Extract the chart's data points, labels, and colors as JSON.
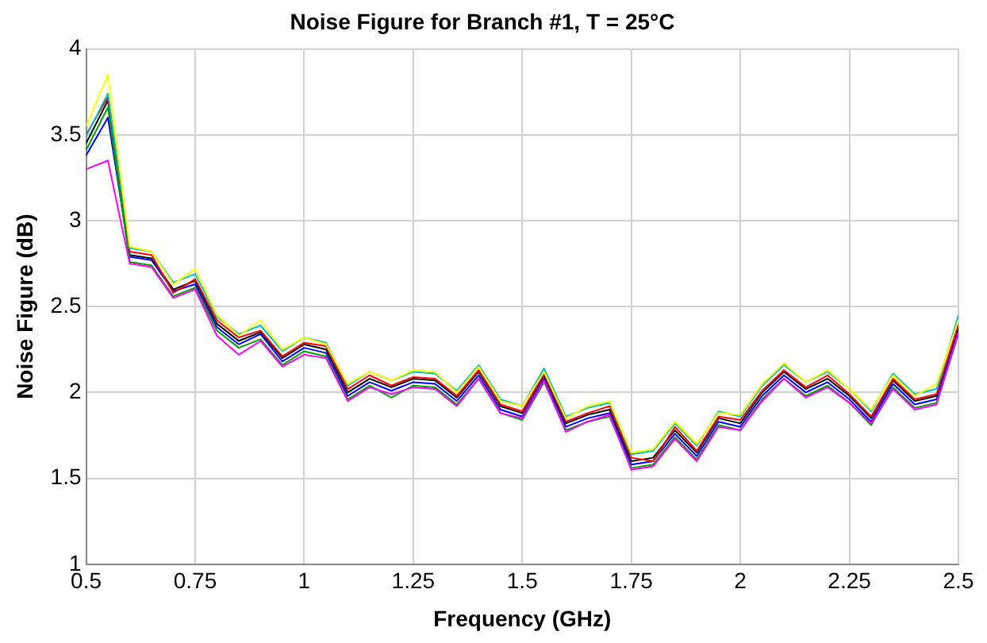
{
  "chart_data": {
    "type": "line",
    "title": "Noise Figure for Branch #1, T = 25°C",
    "xlabel": "Frequency (GHz)",
    "ylabel": "Noise Figure (dB)",
    "x": [
      0.5,
      0.55,
      0.6,
      0.65,
      0.7,
      0.75,
      0.8,
      0.85,
      0.9,
      0.95,
      1.0,
      1.05,
      1.1,
      1.15,
      1.2,
      1.25,
      1.3,
      1.35,
      1.4,
      1.45,
      1.5,
      1.55,
      1.6,
      1.65,
      1.7,
      1.75,
      1.8,
      1.85,
      1.9,
      1.95,
      2.0,
      2.05,
      2.1,
      2.15,
      2.2,
      2.25,
      2.3,
      2.35,
      2.4,
      2.45,
      2.5
    ],
    "series": [
      {
        "color": "#ffff00",
        "values": [
          3.55,
          3.85,
          2.85,
          2.82,
          2.63,
          2.72,
          2.45,
          2.33,
          2.42,
          2.25,
          2.32,
          2.28,
          2.05,
          2.12,
          2.07,
          2.13,
          2.12,
          2.0,
          2.15,
          1.95,
          1.92,
          2.12,
          1.85,
          1.92,
          1.95,
          1.65,
          1.67,
          1.83,
          1.7,
          1.88,
          1.87,
          2.05,
          2.17,
          2.06,
          2.13,
          2.02,
          1.9,
          2.1,
          1.98,
          2.05,
          2.42
        ]
      },
      {
        "color": "#ff00ff",
        "values": [
          3.3,
          3.35,
          2.75,
          2.73,
          2.55,
          2.6,
          2.33,
          2.22,
          2.3,
          2.15,
          2.22,
          2.2,
          1.95,
          2.03,
          1.99,
          2.03,
          2.02,
          1.92,
          2.08,
          1.88,
          1.85,
          2.07,
          1.77,
          1.83,
          1.87,
          1.55,
          1.57,
          1.73,
          1.6,
          1.8,
          1.78,
          1.95,
          2.08,
          1.97,
          2.03,
          1.94,
          1.82,
          2.02,
          1.9,
          1.93,
          2.35
        ]
      },
      {
        "color": "#00c0c0",
        "values": [
          3.49,
          3.74,
          2.84,
          2.82,
          2.64,
          2.69,
          2.44,
          2.34,
          2.39,
          2.24,
          2.32,
          2.29,
          2.04,
          2.12,
          2.07,
          2.12,
          2.11,
          2.01,
          2.16,
          1.96,
          1.92,
          2.14,
          1.86,
          1.91,
          1.94,
          1.64,
          1.66,
          1.82,
          1.69,
          1.89,
          1.86,
          2.04,
          2.16,
          2.06,
          2.12,
          2.02,
          1.89,
          2.11,
          1.99,
          2.02,
          2.45
        ]
      },
      {
        "color": "#00a000",
        "values": [
          3.41,
          3.66,
          2.76,
          2.74,
          2.56,
          2.61,
          2.36,
          2.26,
          2.31,
          2.16,
          2.24,
          2.21,
          1.96,
          2.04,
          1.97,
          2.04,
          2.03,
          1.93,
          2.08,
          1.88,
          1.84,
          2.06,
          1.78,
          1.83,
          1.86,
          1.56,
          1.58,
          1.74,
          1.61,
          1.81,
          1.78,
          1.96,
          2.08,
          1.98,
          2.04,
          1.94,
          1.81,
          2.03,
          1.91,
          1.94,
          2.34
        ]
      },
      {
        "color": "#ff0000",
        "values": [
          3.5,
          3.72,
          2.82,
          2.8,
          2.58,
          2.66,
          2.42,
          2.32,
          2.36,
          2.21,
          2.29,
          2.27,
          2.02,
          2.1,
          2.04,
          2.09,
          2.08,
          1.98,
          2.13,
          1.93,
          1.89,
          2.11,
          1.83,
          1.88,
          1.92,
          1.62,
          1.6,
          1.8,
          1.66,
          1.86,
          1.84,
          2.01,
          2.13,
          2.03,
          2.1,
          1.99,
          1.86,
          2.08,
          1.96,
          1.99,
          2.4
        ]
      },
      {
        "color": "#0000ff",
        "values": [
          3.38,
          3.6,
          2.79,
          2.77,
          2.59,
          2.63,
          2.38,
          2.28,
          2.34,
          2.18,
          2.26,
          2.23,
          1.98,
          2.06,
          2.01,
          2.06,
          2.05,
          1.95,
          2.1,
          1.9,
          1.86,
          2.08,
          1.8,
          1.85,
          1.88,
          1.58,
          1.6,
          1.76,
          1.63,
          1.83,
          1.8,
          1.98,
          2.1,
          2.0,
          2.06,
          1.96,
          1.83,
          2.05,
          1.93,
          1.96,
          2.36
        ]
      },
      {
        "color": "#000000",
        "values": [
          3.45,
          3.7,
          2.8,
          2.78,
          2.6,
          2.65,
          2.4,
          2.3,
          2.35,
          2.2,
          2.28,
          2.25,
          2.0,
          2.08,
          2.03,
          2.08,
          2.07,
          1.97,
          2.12,
          1.92,
          1.88,
          2.1,
          1.82,
          1.87,
          1.9,
          1.6,
          1.62,
          1.78,
          1.65,
          1.85,
          1.82,
          2.0,
          2.12,
          2.02,
          2.08,
          1.98,
          1.85,
          2.07,
          1.95,
          1.98,
          2.38
        ]
      }
    ],
    "xlim": [
      0.5,
      2.5
    ],
    "xticks": [
      0.5,
      0.75,
      1,
      1.25,
      1.5,
      1.75,
      2,
      2.25,
      2.5
    ],
    "ylim": [
      1,
      4
    ],
    "yticks": [
      1,
      1.5,
      2,
      2.5,
      3,
      3.5,
      4
    ],
    "grid": true,
    "legend": false,
    "marker": "none",
    "line_style": "solid"
  }
}
